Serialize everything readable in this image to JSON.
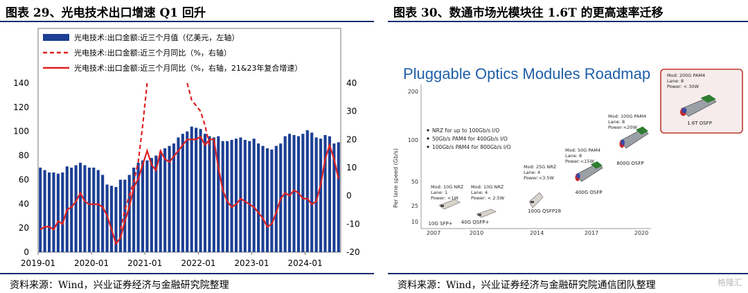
{
  "left_panel": {
    "title": "图表 29、光电技术出口增速 Q1 回升",
    "source": "资料来源：Wind，兴业证券经济与金融研究院整理"
  },
  "right_panel": {
    "title": "图表 30、数通市场光模块往 1.6T 的更高速率迁移",
    "source": "资料来源：Wind，兴业证券经济与金融研究院通信团队整理",
    "watermark": "格隆汇",
    "roadmap": {
      "title": "Pluggable Optics Modules Roadmap",
      "ylabel": "Per lane speed (Gb/s)",
      "yticks": [
        "200",
        "100",
        "50",
        "25",
        "10"
      ],
      "xticks": [
        "2007",
        "2010",
        "2014",
        "2017",
        "2020"
      ],
      "notes": [
        "NRZ for up to 100Gb/s I/O",
        "50Gb/s PAM4 for 400Gb/s I/O",
        "100Gb/s PAM4 for 800Gb/s I/O"
      ],
      "modules": [
        {
          "spec": [
            "Mod: 10G NRZ",
            "Lane: 1",
            "Power: <1W"
          ],
          "name": "10G SFP+"
        },
        {
          "spec": [
            "Mod: 10G NRZ",
            "Lane: 4",
            "Power: < 2.5W"
          ],
          "name": "40G QSFP+"
        },
        {
          "spec": [
            "Mod: 25G NRZ",
            "Lane: 4",
            "Power:<3.5W"
          ],
          "name": "100G QSFP28"
        },
        {
          "spec": [
            "Mod: 50G PAM4",
            "Lane: 8",
            "Power:<15W"
          ],
          "name": "400G OSFP"
        },
        {
          "spec": [
            "Mod: 100G PAM4",
            "Lane: 8",
            "Power:<20W"
          ],
          "name": "800G OSFP"
        },
        {
          "spec": [
            "Mod: 200G PAM4",
            "Lane: 8",
            "Power: < 30W"
          ],
          "name": "1.6T OSFP"
        }
      ]
    }
  },
  "chart_data": {
    "type": "bar",
    "legend": [
      "光电技术:出口金额:近三个月值（亿美元，左轴）",
      "光电技术:出口金额:近三个月同比（%，右轴）",
      "光电技术:出口金额:近三个月同比（%，右轴，21&23年复合增速）"
    ],
    "ylim_left": [
      0,
      140
    ],
    "yticks_left": [
      "0",
      "20",
      "40",
      "60",
      "80",
      "100",
      "120",
      "140"
    ],
    "ylim_right": [
      -20,
      40
    ],
    "yticks_right": [
      "-20",
      "-10",
      "0",
      "10",
      "20",
      "30",
      "40"
    ],
    "xticks": [
      "2019-01",
      "2020-01",
      "2021-01",
      "2022-01",
      "2023-01",
      "2024-01"
    ],
    "x_start": "2019-01",
    "series": [
      {
        "name": "光电技术:出口金额:近三个月值（亿美元，左轴）",
        "axis": "left",
        "values": [
          70,
          68,
          66,
          66,
          65,
          66,
          71,
          70,
          72,
          74,
          72,
          70,
          70,
          68,
          64,
          56,
          55,
          54,
          60,
          60,
          64,
          70,
          74,
          76,
          76,
          78,
          80,
          83,
          86,
          88,
          90,
          95,
          98,
          100,
          104,
          103,
          102,
          98,
          96,
          95,
          96,
          92,
          92,
          93,
          94,
          95,
          93,
          92,
          94,
          90,
          88,
          86,
          85,
          88,
          90,
          96,
          98,
          97,
          96,
          98,
          101,
          99,
          95,
          94,
          97,
          96,
          90,
          91
        ]
      },
      {
        "name": "光电技术:出口金额:近三个月同比（%，右轴）",
        "axis": "right",
        "style": "dashed",
        "segments": [
          {
            "start": 18,
            "values": [
              -12,
              -5,
              0,
              5,
              12,
              25,
              40
            ]
          },
          {
            "start": 33,
            "values": [
              40,
              34,
              32,
              30,
              25,
              18
            ]
          }
        ]
      },
      {
        "name": "光电技术:出口金额:近三个月同比（%，右轴，21&23年复合增速）",
        "axis": "right",
        "style": "solid",
        "values": [
          -12,
          -11,
          -11,
          -12,
          -9,
          -10,
          -5,
          -4,
          -2,
          1,
          -2,
          -3,
          -3,
          -3,
          -4,
          -7,
          -12,
          -17,
          -15,
          -9,
          -4,
          3,
          6,
          11,
          16,
          11,
          9,
          16,
          13,
          12,
          14,
          16,
          18,
          20,
          20,
          20,
          21,
          18,
          20,
          20,
          10,
          2,
          -2,
          -4,
          -3,
          -1,
          -2,
          -3,
          -4,
          -6,
          -8,
          -11,
          -10,
          -6,
          -1,
          1,
          0,
          2,
          1,
          -1,
          -1,
          -3,
          -2,
          4,
          13,
          18,
          13,
          6
        ]
      }
    ]
  }
}
